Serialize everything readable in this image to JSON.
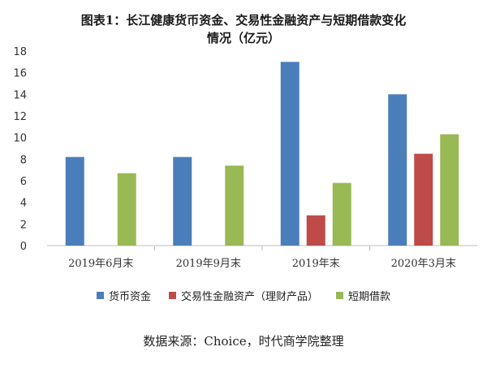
{
  "chart_data": {
    "type": "bar",
    "title_line1": "图表1：长江健康货币资金、交易性金融资产与短期借款变化",
    "title_line2": "情况（亿元）",
    "categories": [
      "2019年6月末",
      "2019年9月末",
      "2019年末",
      "2020年3月末"
    ],
    "series": [
      {
        "name": "货币资金",
        "color": "#4a7ebb",
        "values": [
          8.2,
          8.2,
          17.0,
          14.0
        ]
      },
      {
        "name": "交易性金融资产（理财产品）",
        "color": "#be4b48",
        "values": [
          0,
          0,
          2.8,
          8.5
        ]
      },
      {
        "name": "短期借款",
        "color": "#98b954",
        "values": [
          6.7,
          7.4,
          5.8,
          10.3
        ]
      }
    ],
    "ylim": [
      0,
      18
    ],
    "yticks": [
      0,
      2,
      4,
      6,
      8,
      10,
      12,
      14,
      16,
      18
    ],
    "grid": false,
    "legend": "bottom"
  },
  "source": "数据来源：Choice，时代商学院整理"
}
